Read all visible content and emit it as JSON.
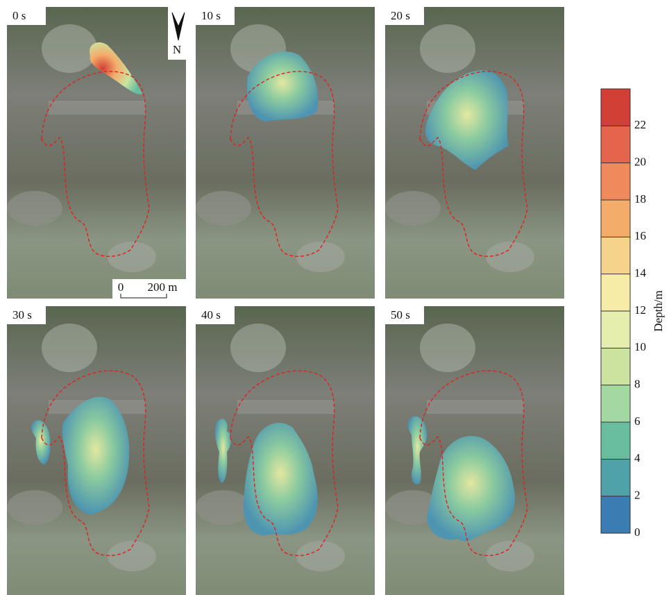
{
  "panels": [
    {
      "label": "0 s"
    },
    {
      "label": "10 s"
    },
    {
      "label": "20 s"
    },
    {
      "label": "30 s"
    },
    {
      "label": "40 s"
    },
    {
      "label": "50 s"
    }
  ],
  "north_label": "N",
  "scale_bar": {
    "start": "0",
    "end": "200 m"
  },
  "colorbar": {
    "label": "Depth/m",
    "range": [
      0,
      24
    ],
    "ticks": [
      0,
      2,
      4,
      6,
      8,
      10,
      12,
      14,
      16,
      18,
      20,
      22
    ],
    "colors": [
      "#3b7cb2",
      "#4fa2a8",
      "#69bea0",
      "#a4d8a2",
      "#cbe39f",
      "#e6eeae",
      "#f6eca8",
      "#f6d38a",
      "#f4ac6a",
      "#f08a5c",
      "#e4654c",
      "#d23f35"
    ]
  }
}
